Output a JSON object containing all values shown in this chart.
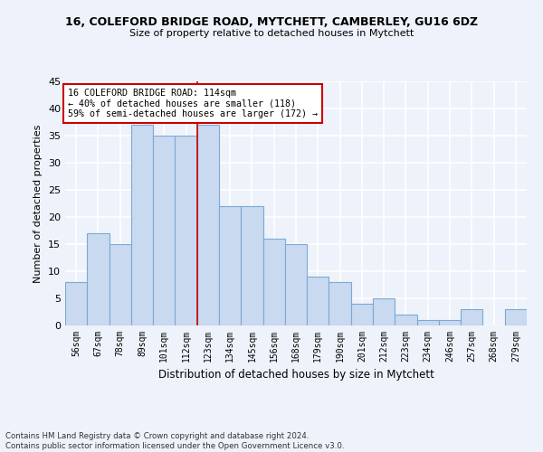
{
  "title1": "16, COLEFORD BRIDGE ROAD, MYTCHETT, CAMBERLEY, GU16 6DZ",
  "title2": "Size of property relative to detached houses in Mytchett",
  "xlabel": "Distribution of detached houses by size in Mytchett",
  "ylabel": "Number of detached properties",
  "categories": [
    "56sqm",
    "67sqm",
    "78sqm",
    "89sqm",
    "101sqm",
    "112sqm",
    "123sqm",
    "134sqm",
    "145sqm",
    "156sqm",
    "168sqm",
    "179sqm",
    "190sqm",
    "201sqm",
    "212sqm",
    "223sqm",
    "234sqm",
    "246sqm",
    "257sqm",
    "268sqm",
    "279sqm"
  ],
  "values": [
    8,
    17,
    15,
    37,
    35,
    35,
    37,
    22,
    22,
    16,
    15,
    9,
    8,
    4,
    5,
    2,
    1,
    1,
    3,
    0,
    3
  ],
  "bar_color": "#c9d9f0",
  "bar_edge_color": "#7baad4",
  "vline_x": 5.5,
  "vline_color": "#cc0000",
  "annotation_text": "16 COLEFORD BRIDGE ROAD: 114sqm\n← 40% of detached houses are smaller (118)\n59% of semi-detached houses are larger (172) →",
  "annotation_box_color": "white",
  "annotation_box_edge": "#cc0000",
  "ylim": [
    0,
    45
  ],
  "yticks": [
    0,
    5,
    10,
    15,
    20,
    25,
    30,
    35,
    40,
    45
  ],
  "footnote": "Contains HM Land Registry data © Crown copyright and database right 2024.\nContains public sector information licensed under the Open Government Licence v3.0.",
  "background_color": "#eef2fa",
  "grid_color": "white"
}
